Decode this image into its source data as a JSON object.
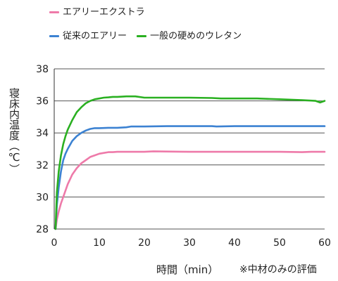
{
  "chart_data": {
    "type": "line",
    "xlabel": "時間（min）",
    "ylabel": "寝床内温度（℃）",
    "note": "※中材のみの評価",
    "xlim": [
      0,
      60
    ],
    "ylim": [
      28,
      38
    ],
    "x_ticks": [
      "0",
      "10",
      "20",
      "30",
      "40",
      "50",
      "60"
    ],
    "y_ticks": [
      "28",
      "30",
      "32",
      "34",
      "36",
      "38"
    ],
    "grid": true,
    "legend_placement": "top-left",
    "series": [
      {
        "name": "エアリーエクストラ",
        "color": "#ee7aa9",
        "x": [
          0.3,
          0.6,
          1,
          1.5,
          2,
          3,
          4,
          5,
          6,
          7,
          8,
          9,
          10,
          11,
          12,
          13,
          14,
          20,
          22,
          30,
          40,
          50,
          55,
          57,
          60
        ],
        "y": [
          28.0,
          28.6,
          29.1,
          29.6,
          30.0,
          30.8,
          31.4,
          31.8,
          32.1,
          32.3,
          32.5,
          32.6,
          32.7,
          32.75,
          32.8,
          32.8,
          32.82,
          32.82,
          32.85,
          32.82,
          32.82,
          32.82,
          32.8,
          32.82,
          32.82
        ]
      },
      {
        "name": "従来のエアリー",
        "color": "#3c82d2",
        "x": [
          0.3,
          0.6,
          1,
          1.5,
          2,
          2.5,
          3,
          4,
          5,
          6,
          7,
          8,
          9,
          10,
          12,
          14,
          16,
          17,
          20,
          25,
          30,
          35,
          36,
          40,
          50,
          60
        ],
        "y": [
          28.0,
          29.5,
          30.6,
          31.6,
          32.3,
          32.7,
          33.0,
          33.5,
          33.8,
          34.0,
          34.15,
          34.25,
          34.3,
          34.3,
          34.32,
          34.32,
          34.35,
          34.4,
          34.4,
          34.42,
          34.42,
          34.42,
          34.4,
          34.42,
          34.42,
          34.42
        ]
      },
      {
        "name": "一般の硬めのウレタン",
        "color": "#2ab021",
        "x": [
          0.3,
          0.6,
          1,
          1.5,
          2,
          2.5,
          3,
          4,
          5,
          6,
          7,
          8,
          9,
          10,
          11,
          12,
          13,
          14,
          16,
          18,
          20,
          22,
          25,
          30,
          35,
          37,
          40,
          45,
          50,
          55,
          58,
          59,
          60
        ],
        "y": [
          28.0,
          30.3,
          31.6,
          32.6,
          33.3,
          33.8,
          34.2,
          34.8,
          35.3,
          35.6,
          35.85,
          36.0,
          36.1,
          36.15,
          36.2,
          36.22,
          36.25,
          36.25,
          36.28,
          36.28,
          36.2,
          36.2,
          36.2,
          36.2,
          36.18,
          36.15,
          36.15,
          36.15,
          36.1,
          36.05,
          36.0,
          35.9,
          36.0
        ]
      }
    ]
  }
}
